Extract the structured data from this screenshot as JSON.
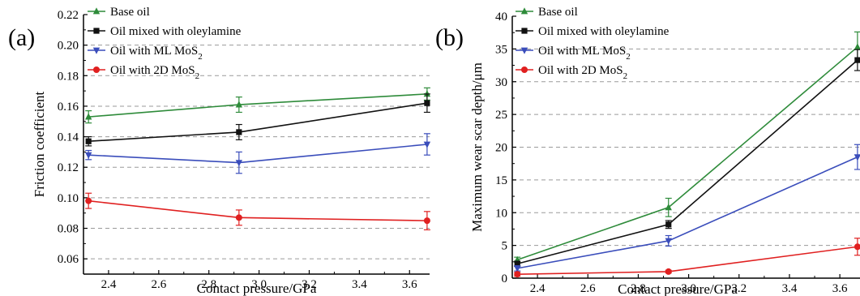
{
  "chart_data": [
    {
      "type": "line",
      "panel_label": "(a)",
      "xlabel": "Contact pressure/GPa",
      "ylabel": "Friction coefficient",
      "xlim": [
        2.3,
        3.68
      ],
      "ylim": [
        0.05,
        0.22
      ],
      "xticks": [
        2.4,
        2.6,
        2.8,
        3.0,
        3.2,
        3.4,
        3.6
      ],
      "xtick_labels": [
        "2.4",
        "2.6",
        "2.8",
        "3.0",
        "3.2",
        "3.4",
        "3.6"
      ],
      "yticks": [
        0.06,
        0.08,
        0.1,
        0.12,
        0.14,
        0.16,
        0.18,
        0.2,
        0.22
      ],
      "ytick_labels": [
        "0.06",
        "0.08",
        "0.10",
        "0.12",
        "0.14",
        "0.16",
        "0.18",
        "0.20",
        "0.22"
      ],
      "grid": "horizontal dashed",
      "legend_position": "top-left",
      "x": [
        2.32,
        2.92,
        3.67
      ],
      "series": [
        {
          "name": "Base oil",
          "name_sub": "",
          "color": "#2e8b3a",
          "marker": "triangle-up",
          "values": [
            0.153,
            0.161,
            0.168
          ],
          "errors": [
            0.004,
            0.005,
            0.004
          ]
        },
        {
          "name": "Oil mixed with oleylamine",
          "name_sub": "",
          "color": "#111111",
          "marker": "square",
          "values": [
            0.137,
            0.143,
            0.162
          ],
          "errors": [
            0.003,
            0.005,
            0.006
          ]
        },
        {
          "name": "Oil with ML MoS",
          "name_sub": "2",
          "color": "#3a4dbb",
          "marker": "triangle-down",
          "values": [
            0.128,
            0.123,
            0.135
          ],
          "errors": [
            0.003,
            0.007,
            0.007
          ]
        },
        {
          "name": "Oil with 2D MoS",
          "name_sub": "2",
          "color": "#e02020",
          "marker": "circle",
          "values": [
            0.098,
            0.087,
            0.085
          ],
          "errors": [
            0.005,
            0.005,
            0.006
          ]
        }
      ]
    },
    {
      "type": "line",
      "panel_label": "(b)",
      "xlabel": "Contact pressure/GPa",
      "ylabel": "Maximum wear scar depth/μm",
      "xlim": [
        2.3,
        3.68
      ],
      "ylim": [
        0,
        40
      ],
      "xticks": [
        2.4,
        2.6,
        2.8,
        3.0,
        3.2,
        3.4,
        3.6
      ],
      "xtick_labels": [
        "2.4",
        "2.6",
        "2.8",
        "3.0",
        "3.2",
        "3.4",
        "3.6"
      ],
      "yticks": [
        0,
        5,
        10,
        15,
        20,
        25,
        30,
        35,
        40
      ],
      "ytick_labels": [
        "0",
        "5",
        "10",
        "15",
        "20",
        "25",
        "30",
        "35",
        "40"
      ],
      "grid": "horizontal dashed",
      "legend_position": "top-left",
      "x": [
        2.32,
        2.92,
        3.67
      ],
      "series": [
        {
          "name": "Base oil",
          "name_sub": "",
          "color": "#2e8b3a",
          "marker": "triangle-up",
          "values": [
            2.8,
            10.8,
            35.3
          ],
          "errors": [
            0.4,
            1.4,
            2.3
          ]
        },
        {
          "name": "Oil mixed with oleylamine",
          "name_sub": "",
          "color": "#111111",
          "marker": "square",
          "values": [
            2.2,
            8.2,
            33.3
          ],
          "errors": [
            0.4,
            0.6,
            1.6
          ]
        },
        {
          "name": "Oil with ML MoS",
          "name_sub": "2",
          "color": "#3a4dbb",
          "marker": "triangle-down",
          "values": [
            1.5,
            5.7,
            18.5
          ],
          "errors": [
            0.4,
            0.8,
            1.9
          ]
        },
        {
          "name": "Oil with 2D MoS",
          "name_sub": "2",
          "color": "#e02020",
          "marker": "circle",
          "values": [
            0.6,
            1.0,
            4.8
          ],
          "errors": [
            0.3,
            0.2,
            1.3
          ]
        }
      ]
    }
  ]
}
